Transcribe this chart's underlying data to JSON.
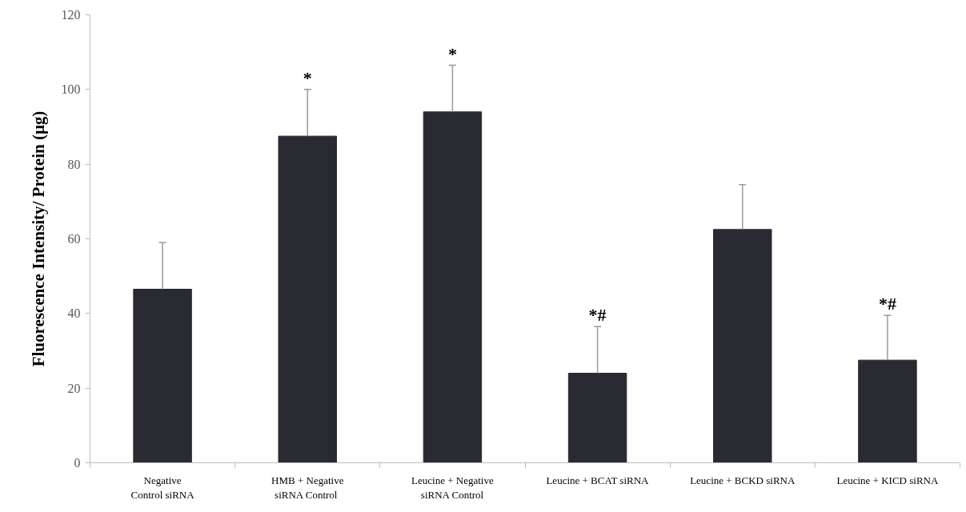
{
  "chart_data": {
    "type": "bar",
    "ylabel": "Fluorescence Intensity/ Protein (μg)",
    "categories": [
      "Negative\nControl siRNA",
      "HMB + Negative\nsiRNA  Control",
      "Leucine + Negative\nsiRNA Control",
      "Leucine + BCAT siRNA",
      "Leucine + BCKD siRNA",
      "Leucine + KICD siRNA"
    ],
    "values": [
      46.5,
      87.5,
      94,
      24,
      62.5,
      27.5
    ],
    "errors": [
      [
        46.5,
        59
      ],
      [
        87.5,
        100
      ],
      [
        94,
        106.5
      ],
      [
        24,
        36.5
      ],
      [
        62.5,
        74.5
      ],
      [
        27.5,
        39.5
      ]
    ],
    "color": "#2a2a33",
    "ylim": [
      0,
      120
    ],
    "yticks": [
      0,
      20,
      40,
      60,
      80,
      100,
      120
    ],
    "annotations": [
      {
        "text": "*",
        "x": "HMB + Negative\nsiRNA  Control",
        "y": 100
      },
      {
        "text": "*",
        "x": "Leucine + Negative\nsiRNA Control",
        "y": 106.5
      },
      {
        "text": "*#",
        "x": "Leucine + BCAT siRNA",
        "y": 36.5
      },
      {
        "text": "*#",
        "x": "Leucine + KICD siRNA",
        "y": 39.5
      }
    ]
  }
}
